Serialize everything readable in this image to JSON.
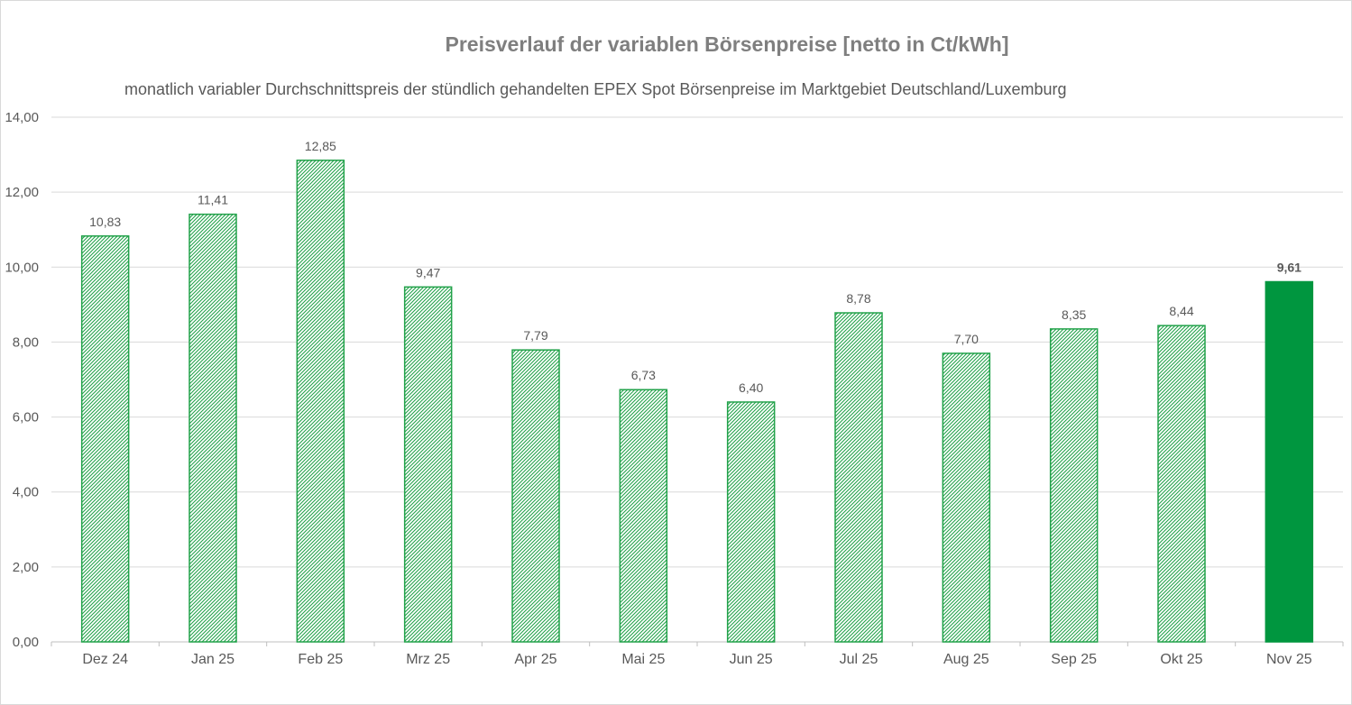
{
  "chart_data": {
    "type": "bar",
    "title": "Preisverlauf der variablen Börsenpreise [netto in Ct/kWh]",
    "subtitle": "monatlich variabler Durchschnittspreis der stündlich gehandelten EPEX Spot Börsenpreise im Marktgebiet Deutschland/Luxemburg",
    "categories": [
      "Dez 24",
      "Jan 25",
      "Feb 25",
      "Mrz 25",
      "Apr 25",
      "Mai 25",
      "Jun 25",
      "Jul 25",
      "Aug 25",
      "Sep 25",
      "Okt 25",
      "Nov 25"
    ],
    "values": [
      10.83,
      11.41,
      12.85,
      9.47,
      7.79,
      6.73,
      6.4,
      8.78,
      7.7,
      8.35,
      8.44,
      9.61
    ],
    "data_labels": [
      "10,83",
      "11,41",
      "12,85",
      "9,47",
      "7,79",
      "6,73",
      "6,40",
      "8,78",
      "7,70",
      "8,35",
      "8,44",
      "9,61"
    ],
    "ylim": [
      0,
      14
    ],
    "yticks": [
      0,
      2,
      4,
      6,
      8,
      10,
      12,
      14
    ],
    "ytick_labels": [
      "0,00",
      "2,00",
      "4,00",
      "6,00",
      "8,00",
      "10,00",
      "12,00",
      "14,00"
    ],
    "grid": true,
    "highlight_last": true,
    "colors": {
      "bar_pattern": "#22a24a",
      "bar_highlight": "#00963f",
      "gridline": "#d9d9d9",
      "text": "#595959",
      "title": "#7f7f7f"
    }
  }
}
